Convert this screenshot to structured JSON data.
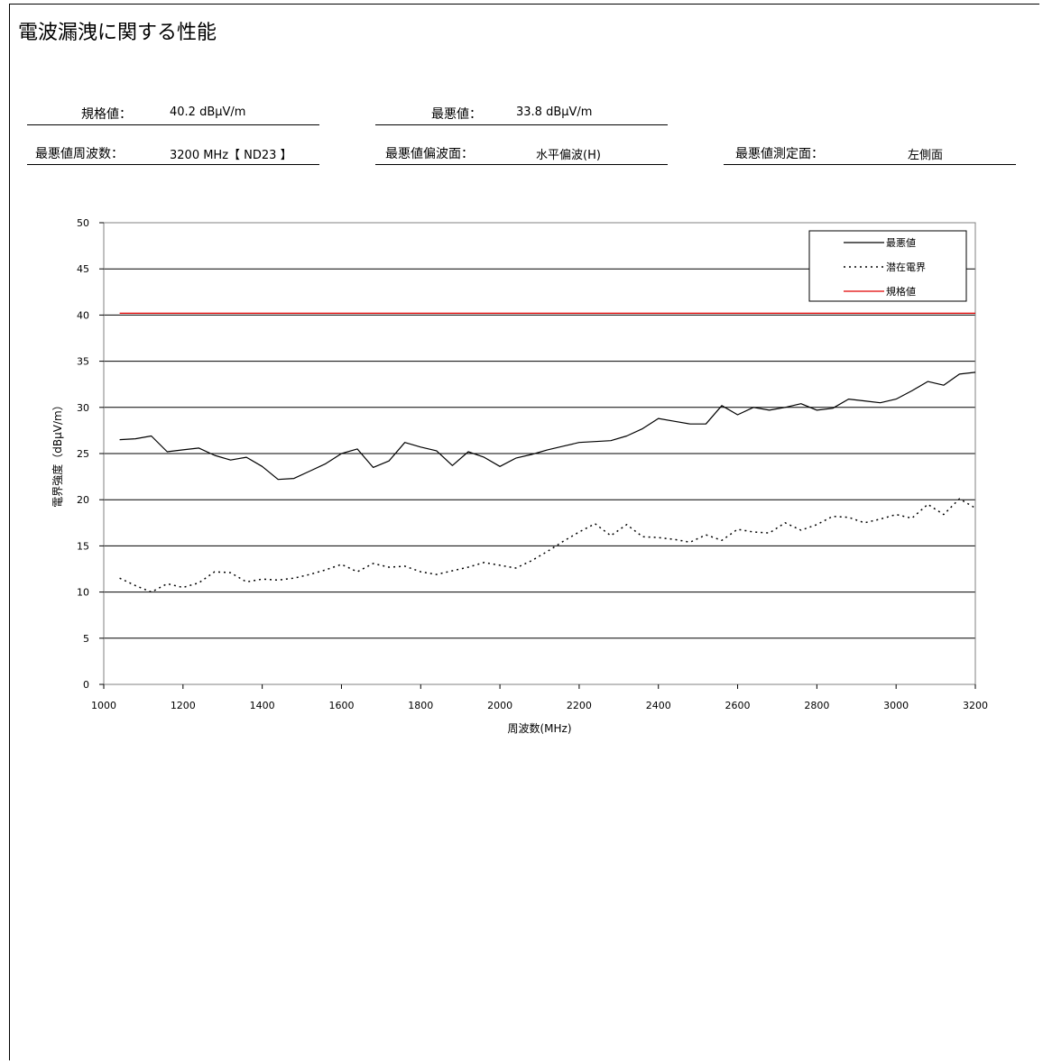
{
  "page": {
    "title": "電波漏洩に関する性能"
  },
  "summary": {
    "limit": {
      "label": "規格値：",
      "value": "40.2  dBμV/m"
    },
    "worst": {
      "label": "最悪値：",
      "value": "33.8  dBμV/m"
    },
    "worst_freq": {
      "label": "最悪値周波数：",
      "value": "3200 MHz【 ND23 】"
    },
    "worst_pol": {
      "label": "最悪値偏波面：",
      "value": "水平偏波(H)"
    },
    "worst_side": {
      "label": "最悪値測定面：",
      "value": "左側面"
    }
  },
  "colors": {
    "worst": "#000000",
    "potential": "#000000",
    "limit": "#e00000",
    "grid": "#000000"
  },
  "chart_data": {
    "type": "line",
    "xlabel": "周波数(MHz)",
    "ylabel": "電界強度（dBμV/m）",
    "xlim": [
      1000,
      3200
    ],
    "ylim": [
      0,
      50
    ],
    "xticks": [
      1000,
      1200,
      1400,
      1600,
      1800,
      2000,
      2200,
      2400,
      2600,
      2800,
      3000,
      3200
    ],
    "yticks": [
      0,
      5,
      10,
      15,
      20,
      25,
      30,
      35,
      40,
      45,
      50
    ],
    "grid": "horizontal",
    "legend_position": "top-right",
    "series": [
      {
        "name": "最悪値",
        "style": "solid",
        "x": [
          1040,
          1080,
          1120,
          1160,
          1200,
          1240,
          1280,
          1320,
          1360,
          1400,
          1440,
          1480,
          1520,
          1560,
          1600,
          1640,
          1680,
          1720,
          1760,
          1800,
          1840,
          1880,
          1920,
          1960,
          2000,
          2040,
          2080,
          2120,
          2160,
          2200,
          2240,
          2280,
          2320,
          2360,
          2400,
          2440,
          2480,
          2520,
          2560,
          2600,
          2640,
          2680,
          2720,
          2760,
          2800,
          2840,
          2880,
          2920,
          2960,
          3000,
          3040,
          3080,
          3120,
          3160,
          3200
        ],
        "values": [
          26.5,
          26.6,
          26.9,
          25.2,
          25.4,
          25.6,
          24.8,
          24.3,
          24.6,
          23.6,
          22.2,
          22.3,
          23.1,
          23.9,
          25.0,
          25.5,
          23.5,
          24.2,
          26.2,
          25.7,
          25.3,
          23.7,
          25.2,
          24.6,
          23.6,
          24.5,
          24.9,
          25.4,
          25.8,
          26.2,
          26.3,
          26.4,
          26.9,
          27.7,
          28.8,
          28.5,
          28.2,
          28.2,
          30.2,
          29.2,
          30.0,
          29.7,
          30.0,
          30.4,
          29.7,
          29.9,
          30.9,
          30.7,
          30.5,
          30.9,
          31.8,
          32.8,
          32.4,
          33.6,
          33.8
        ]
      },
      {
        "name": "潜在電界",
        "style": "dotted",
        "x": [
          1040,
          1080,
          1120,
          1160,
          1200,
          1240,
          1280,
          1320,
          1360,
          1400,
          1440,
          1480,
          1520,
          1560,
          1600,
          1640,
          1680,
          1720,
          1760,
          1800,
          1840,
          1880,
          1920,
          1960,
          2000,
          2040,
          2080,
          2120,
          2160,
          2200,
          2240,
          2280,
          2320,
          2360,
          2400,
          2440,
          2480,
          2520,
          2560,
          2600,
          2640,
          2680,
          2720,
          2760,
          2800,
          2840,
          2880,
          2920,
          2960,
          3000,
          3040,
          3080,
          3120,
          3160,
          3200
        ],
        "values": [
          11.5,
          10.7,
          10.0,
          10.9,
          10.5,
          11.0,
          12.2,
          12.1,
          11.1,
          11.4,
          11.3,
          11.5,
          11.9,
          12.4,
          13.0,
          12.2,
          13.1,
          12.7,
          12.8,
          12.2,
          11.9,
          12.3,
          12.7,
          13.2,
          12.9,
          12.6,
          13.4,
          14.4,
          15.5,
          16.5,
          17.4,
          16.1,
          17.3,
          16.0,
          15.9,
          15.7,
          15.4,
          16.2,
          15.6,
          16.8,
          16.5,
          16.4,
          17.5,
          16.7,
          17.3,
          18.2,
          18.1,
          17.5,
          17.9,
          18.4,
          18.0,
          19.5,
          18.4,
          20.1,
          19.1
        ]
      },
      {
        "name": "規格値",
        "style": "solid",
        "x": [
          1040,
          3200
        ],
        "values": [
          40.2,
          40.2
        ]
      }
    ]
  }
}
